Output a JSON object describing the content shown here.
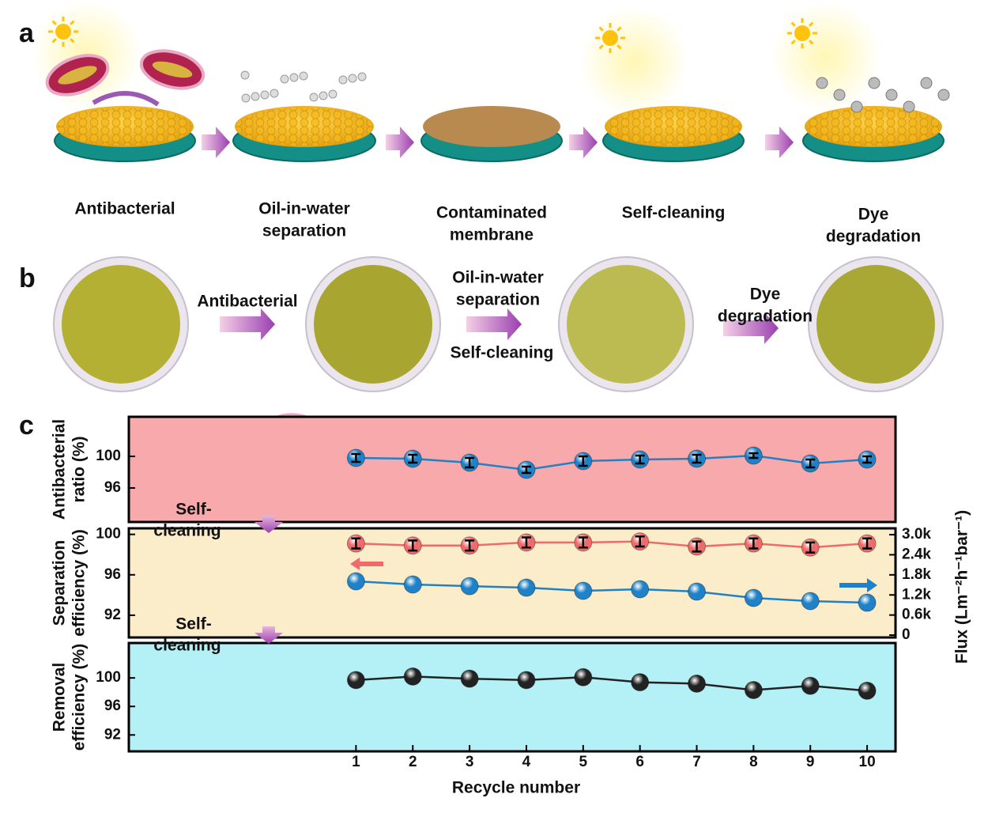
{
  "panel_a": {
    "label": "a",
    "steps": [
      [
        "Antibacterial"
      ],
      [
        "Oil-in-water",
        "separation"
      ],
      [
        "Contaminated",
        "membrane"
      ],
      [
        "Self-cleaning"
      ],
      [
        "Dye",
        "degradation"
      ]
    ]
  },
  "panel_b": {
    "label": "b",
    "transitions": [
      {
        "above": [
          "Antibacterial"
        ]
      },
      {
        "above": [
          "Oil-in-water",
          "separation"
        ],
        "below": [
          "Self-cleaning"
        ]
      },
      {
        "above": [
          "Dye",
          "degradation"
        ]
      }
    ]
  },
  "panel_c": {
    "label": "c",
    "insets": [
      [
        "Self-",
        "cleaning"
      ],
      [
        "Self-",
        "cleaning"
      ]
    ]
  },
  "chart_data": [
    {
      "type": "line",
      "ylabel": [
        "Antibacterial",
        "ratio (%)"
      ],
      "background": "#f8a9ab",
      "x": [
        1,
        2,
        3,
        4,
        5,
        6,
        7,
        8,
        9,
        10
      ],
      "xlim": [
        -3,
        10.5
      ],
      "ylim": [
        91.7,
        105
      ],
      "yticks": [
        96,
        100
      ],
      "series": [
        {
          "color": "#1f82c8",
          "values": [
            99.8,
            99.7,
            99.2,
            98.3,
            99.4,
            99.6,
            99.7,
            100.1,
            99.1,
            99.6
          ],
          "errors": [
            0.5,
            0.5,
            0.6,
            0.4,
            0.6,
            0.5,
            0.5,
            0.3,
            0.5,
            0.4
          ]
        }
      ]
    },
    {
      "type": "line",
      "ylabel": [
        "Separation",
        "efficiency (%)"
      ],
      "y2label": "Flux (Lm⁻²h⁻¹bar⁻¹)",
      "background": "#fbedc9",
      "x": [
        1,
        2,
        3,
        4,
        5,
        6,
        7,
        8,
        9,
        10
      ],
      "xlim": [
        -3,
        10.5
      ],
      "ylim": [
        89.8,
        100.6
      ],
      "yticks": [
        92,
        96,
        100
      ],
      "y2lim": [
        -70,
        3190
      ],
      "y2ticks": [
        0,
        {
          "value": 600,
          "label": "0.6k"
        },
        {
          "value": 1200,
          "label": "1.2k"
        },
        {
          "value": 1800,
          "label": "1.8k"
        },
        {
          "value": 2400,
          "label": "2.4k"
        },
        {
          "value": 3000,
          "label": "3.0k"
        }
      ],
      "series": [
        {
          "color": "#ee6b6b",
          "values": [
            99.1,
            98.9,
            98.9,
            99.2,
            99.2,
            99.3,
            98.8,
            99.1,
            98.7,
            99.1
          ],
          "errors": [
            0.5,
            0.5,
            0.5,
            0.5,
            0.5,
            0.5,
            0.5,
            0.5,
            0.5,
            0.5
          ]
        },
        {
          "color": "#1f82c8",
          "axis": "y2",
          "values": [
            1606,
            1512,
            1464,
            1417,
            1323,
            1370,
            1299,
            1110,
            1016,
            968
          ]
        }
      ]
    },
    {
      "type": "line",
      "ylabel": [
        "Removal",
        "efficiency (%)"
      ],
      "xlabel": "Recycle number",
      "background": "#b4f1f7",
      "x": [
        1,
        2,
        3,
        4,
        5,
        6,
        7,
        8,
        9,
        10
      ],
      "xlim": [
        -3,
        10.5
      ],
      "xticks": [
        1,
        2,
        3,
        4,
        5,
        6,
        7,
        8,
        9,
        10
      ],
      "ylim": [
        89.7,
        104.9
      ],
      "yticks": [
        92,
        96,
        100
      ],
      "series": [
        {
          "color": "#222222",
          "values": [
            99.7,
            100.2,
            99.9,
            99.7,
            100.1,
            99.4,
            99.2,
            98.3,
            98.9,
            98.2
          ]
        }
      ]
    }
  ]
}
